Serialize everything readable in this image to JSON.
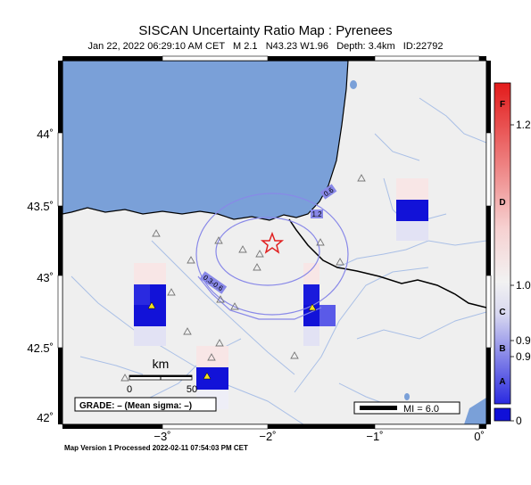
{
  "title": "SISCAN Uncertainty Ratio Map : Pyrenees",
  "subtitle": {
    "date": "Jan 22, 2022 06:29:10 AM CET",
    "magnitude": "M 2.1",
    "location": "N43.23 W1.96",
    "depth": "Depth: 3.4km",
    "id": "ID:22792"
  },
  "axes": {
    "lat_ticks": [
      "44˚",
      "43.5˚",
      "43˚",
      "42.5˚",
      "42˚"
    ],
    "lon_ticks": [
      "−3˚",
      "−2˚",
      "−1˚",
      "0˚"
    ]
  },
  "scale_bar": {
    "unit": "km",
    "labels": [
      "0",
      "50"
    ]
  },
  "grade_box": "GRADE: – (Mean sigma: –)",
  "mi_box": "MI = 6.0",
  "contour_labels": [
    "0.6",
    "1.2",
    "0.3-0.6"
  ],
  "colorbar": {
    "letters": [
      "F",
      "D",
      "C",
      "B",
      "A"
    ],
    "values": [
      "1.2",
      "1.0",
      "0.9",
      "0.9",
      "0"
    ],
    "colors": {
      "top": "#e31b1b",
      "mid": "#f2f2f2",
      "bottom": "#1010d8"
    }
  },
  "footer": "Map Version 1 Processed 2022-02-11 07:54:03 PM CET",
  "colors": {
    "sea": "#7aa0d8",
    "land": "#efefef",
    "epicenter": "#e02020",
    "station": "#f0e020"
  }
}
